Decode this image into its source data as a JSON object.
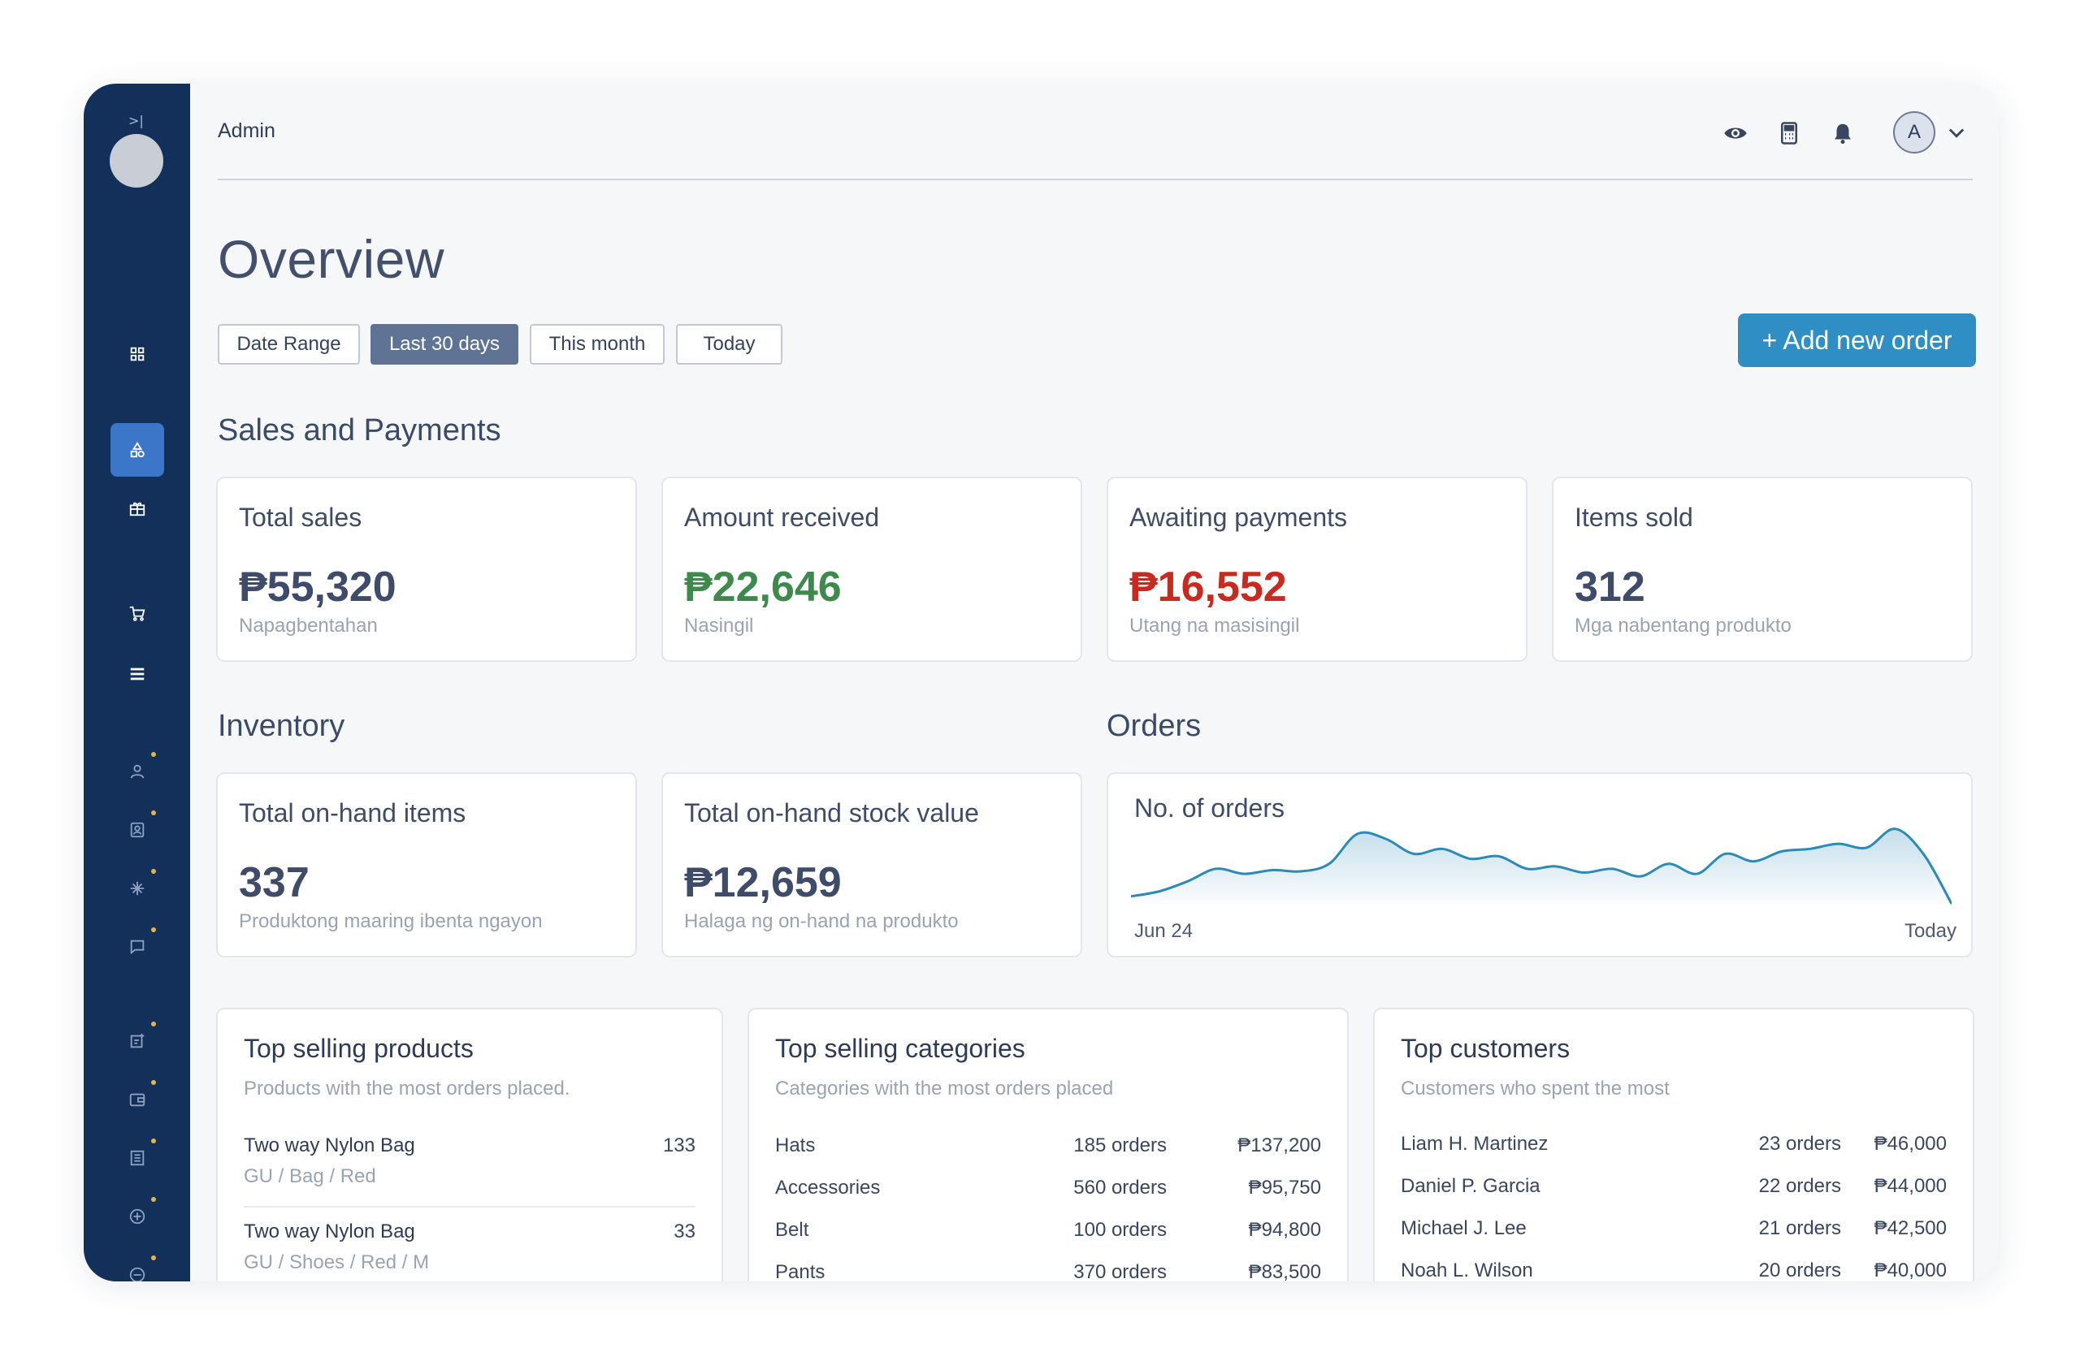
{
  "header": {
    "title": "Admin",
    "avatar_initial": "A"
  },
  "page": {
    "title": "Overview"
  },
  "filters": [
    {
      "label": "Date Range",
      "active": false
    },
    {
      "label": "Last 30 days",
      "active": true
    },
    {
      "label": "This month",
      "active": false
    },
    {
      "label": "Today",
      "active": false
    }
  ],
  "add_order_label": "+ Add new order",
  "sales_section": {
    "title": "Sales and Payments",
    "cards": [
      {
        "label": "Total sales",
        "value": "₱55,320",
        "sub": "Napagbentahan",
        "color": "#3e4c69"
      },
      {
        "label": "Amount received",
        "value": "₱22,646",
        "sub": "Nasingil",
        "color": "#3d8a4c"
      },
      {
        "label": "Awaiting payments",
        "value": "₱16,552",
        "sub": "Utang na masisingil",
        "color": "#c92a1f"
      },
      {
        "label": "Items sold",
        "value": "312",
        "sub": "Mga nabentang produkto",
        "color": "#3e4c69"
      }
    ]
  },
  "inventory_section": {
    "title": "Inventory",
    "cards": [
      {
        "label": "Total on-hand items",
        "value": "337",
        "sub": "Produktong maaring ibenta ngayon"
      },
      {
        "label": "Total on-hand stock value",
        "value": "₱12,659",
        "sub": "Halaga ng on-hand na produkto"
      }
    ]
  },
  "orders_section": {
    "title": "Orders",
    "chart_label": "No. of orders",
    "x_start": "Jun 24",
    "x_end": "Today"
  },
  "chart_data": {
    "type": "area",
    "title": "No. of orders",
    "x": [
      "Jun 24",
      "",
      "",
      "",
      "",
      "",
      "",
      "",
      "",
      "",
      "",
      "",
      "",
      "",
      "",
      "",
      "",
      "",
      "",
      "",
      "",
      "",
      "",
      "",
      "",
      "",
      "",
      "",
      "",
      "Today"
    ],
    "values": [
      6,
      10,
      18,
      28,
      24,
      27,
      26,
      32,
      56,
      52,
      40,
      44,
      36,
      38,
      28,
      30,
      25,
      28,
      22,
      32,
      24,
      40,
      34,
      42,
      44,
      48,
      45,
      60,
      40,
      0
    ],
    "ylim": [
      0,
      65
    ],
    "grid": false,
    "line_color": "#2b8ab8"
  },
  "top_products": {
    "title": "Top selling products",
    "subtitle": "Products with the most orders placed.",
    "items": [
      {
        "name": "Two way Nylon Bag",
        "variant": "GU / Bag / Red",
        "count": "133"
      },
      {
        "name": "Two way Nylon Bag",
        "variant": "GU / Shoes / Red / M",
        "count": "33"
      }
    ]
  },
  "top_categories": {
    "title": "Top selling categories",
    "subtitle": "Categories with the most orders placed",
    "items": [
      {
        "name": "Hats",
        "orders": "185 orders",
        "amount": "₱137,200"
      },
      {
        "name": "Accessories",
        "orders": "560 orders",
        "amount": "₱95,750"
      },
      {
        "name": "Belt",
        "orders": "100 orders",
        "amount": "₱94,800"
      },
      {
        "name": "Pants",
        "orders": "370 orders",
        "amount": "₱83,500"
      }
    ]
  },
  "top_customers": {
    "title": "Top customers",
    "subtitle": "Customers who spent the most",
    "items": [
      {
        "name": "Liam H. Martinez",
        "orders": "23 orders",
        "amount": "₱46,000"
      },
      {
        "name": "Daniel P. Garcia",
        "orders": "22 orders",
        "amount": "₱44,000"
      },
      {
        "name": "Michael J. Lee",
        "orders": "21 orders",
        "amount": "₱42,500"
      },
      {
        "name": "Noah L. Wilson",
        "orders": "20 orders",
        "amount": "₱40,000"
      }
    ]
  },
  "sidebar": {
    "icons": [
      "dashboard-icon",
      "shapes-icon",
      "gift-icon",
      "cart-icon",
      "list-icon",
      "user-icon",
      "contact-card-icon",
      "sparkle-icon",
      "chat-icon",
      "add-document-icon",
      "wallet-icon",
      "ledger-icon",
      "plus-circle-icon",
      "minus-circle-icon"
    ],
    "expand_symbol": ">|"
  }
}
